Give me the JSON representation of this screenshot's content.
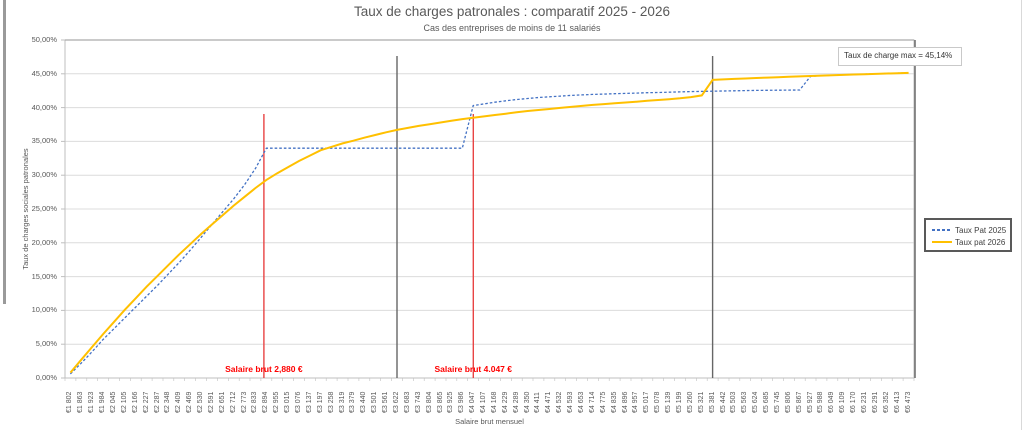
{
  "chart_data": {
    "type": "line",
    "title": "Taux de charges patronales : comparatif 2025 - 2026",
    "subtitle": "Cas des entreprises de moins de 11 salariés",
    "xlabel": "Salaire brut mensuel",
    "ylabel": "Taux de charges sociales patronales",
    "ylim": [
      0,
      50
    ],
    "grid": true,
    "legend_position": "right",
    "annotation": "Taux de charge max = 45,14%",
    "y_ticks": [
      "0,00%",
      "5,00%",
      "10,00%",
      "15,00%",
      "20,00%",
      "25,00%",
      "30,00%",
      "35,00%",
      "40,00%",
      "45,00%",
      "50,00%"
    ],
    "categories": [
      "€1 802",
      "€1 863",
      "€1 923",
      "€1 984",
      "€2 045",
      "€2 105",
      "€2 166",
      "€2 227",
      "€2 287",
      "€2 348",
      "€2 409",
      "€2 469",
      "€2 530",
      "€2 591",
      "€2 651",
      "€2 712",
      "€2 773",
      "€2 833",
      "€2 894",
      "€2 955",
      "€3 015",
      "€3 076",
      "€3 137",
      "€3 197",
      "€3 258",
      "€3 319",
      "€3 379",
      "€3 440",
      "€3 501",
      "€3 561",
      "€3 622",
      "€3 683",
      "€3 743",
      "€3 804",
      "€3 865",
      "€3 925",
      "€3 986",
      "€4 047",
      "€4 107",
      "€4 168",
      "€4 229",
      "€4 289",
      "€4 350",
      "€4 411",
      "€4 471",
      "€4 532",
      "€4 593",
      "€4 653",
      "€4 714",
      "€4 775",
      "€4 835",
      "€4 896",
      "€4 957",
      "€5 017",
      "€5 078",
      "€5 139",
      "€5 199",
      "€5 260",
      "€5 321",
      "€5 381",
      "€5 442",
      "€5 503",
      "€5 563",
      "€5 624",
      "€5 685",
      "€5 745",
      "€5 806",
      "€5 867",
      "€5 927",
      "€5 988",
      "€6 049",
      "€6 109",
      "€6 170",
      "€6 231",
      "€6 291",
      "€6 352",
      "€6 413",
      "€6 473"
    ],
    "series": [
      {
        "name": "Taux Pat 2025",
        "color": "#4472C4",
        "style": "dashed",
        "values": [
          0.6,
          2.2,
          3.9,
          5.7,
          7.3,
          8.9,
          10.5,
          12.1,
          13.7,
          15.4,
          17.1,
          18.9,
          20.8,
          22.7,
          24.6,
          26.5,
          28.6,
          31.0,
          34.0,
          34.0,
          34.0,
          34.0,
          34.0,
          34.0,
          34.0,
          34.0,
          34.0,
          34.0,
          34.0,
          34.0,
          34.0,
          34.0,
          34.0,
          34.0,
          34.0,
          34.0,
          34.0,
          40.3,
          40.55,
          40.8,
          41.0,
          41.2,
          41.35,
          41.5,
          41.6,
          41.7,
          41.8,
          41.88,
          41.95,
          42.0,
          42.05,
          42.1,
          42.15,
          42.2,
          42.24,
          42.28,
          42.32,
          42.36,
          42.4,
          42.43,
          42.46,
          42.49,
          42.52,
          42.54,
          42.56,
          42.58,
          42.59,
          42.6,
          44.65,
          44.72,
          44.78,
          44.84,
          44.9,
          44.95,
          45.0,
          45.05,
          45.1,
          45.14
        ]
      },
      {
        "name": "Taux pat 2026",
        "color": "#FFC000",
        "style": "solid",
        "values": [
          0.8,
          2.7,
          4.6,
          6.5,
          8.3,
          10.1,
          11.8,
          13.5,
          15.1,
          16.7,
          18.3,
          19.8,
          21.3,
          22.7,
          24.1,
          25.5,
          26.8,
          28.1,
          29.3,
          30.3,
          31.2,
          32.1,
          32.9,
          33.7,
          34.2,
          34.7,
          35.1,
          35.55,
          35.95,
          36.35,
          36.7,
          37.0,
          37.3,
          37.55,
          37.8,
          38.05,
          38.3,
          38.5,
          38.7,
          38.9,
          39.1,
          39.3,
          39.5,
          39.65,
          39.8,
          39.95,
          40.1,
          40.25,
          40.4,
          40.52,
          40.64,
          40.76,
          40.88,
          41.0,
          41.12,
          41.24,
          41.38,
          41.55,
          41.8,
          44.1,
          44.17,
          44.24,
          44.31,
          44.38,
          44.44,
          44.5,
          44.56,
          44.62,
          44.68,
          44.74,
          44.79,
          44.84,
          44.89,
          44.94,
          44.99,
          45.04,
          45.09,
          45.14
        ]
      }
    ],
    "red_vlines": [
      {
        "x_value": 2880,
        "label": "Salaire brut 2,880 €"
      },
      {
        "x_value": 4047,
        "label": "Salaire brut 4.047 €"
      }
    ],
    "gray_vlines": [
      {
        "x_value": 3622
      },
      {
        "x_value": 5381
      }
    ]
  }
}
